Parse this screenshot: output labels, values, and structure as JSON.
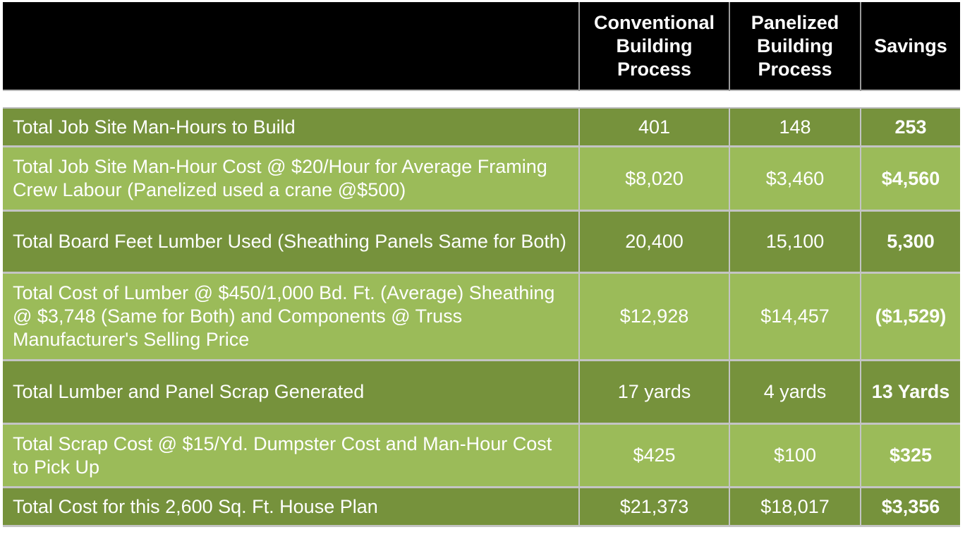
{
  "colors": {
    "header_bg": "#000000",
    "row_dark": "#76923c",
    "row_light": "#9bbb59",
    "text": "#ffffff",
    "grid": "#c4c4c4"
  },
  "header": {
    "conventional": "Conventional Building Process",
    "panelized": "Panelized Building Process",
    "savings": "Savings"
  },
  "rows": [
    {
      "label": "Total Job Site Man-Hours to Build",
      "conventional": "401",
      "panelized": "148",
      "savings": "253"
    },
    {
      "label": "Total Job Site Man-Hour Cost @ $20/Hour for Average Framing Crew Labour (Panelized used a crane @$500)",
      "conventional": "$8,020",
      "panelized": "$3,460",
      "savings": "$4,560"
    },
    {
      "label": "Total Board Feet Lumber Used (Sheathing Panels Same for Both)",
      "conventional": "20,400",
      "panelized": "15,100",
      "savings": "5,300"
    },
    {
      "label": "Total Cost of Lumber @ $450/1,000 Bd. Ft. (Average) Sheathing @ $3,748 (Same for Both) and Components @ Truss Manufacturer's Selling Price",
      "conventional": "$12,928",
      "panelized": "$14,457",
      "savings": "($1,529)"
    },
    {
      "label": "Total Lumber and Panel Scrap Generated",
      "conventional": "17 yards",
      "panelized": "4 yards",
      "savings": "13 Yards"
    },
    {
      "label": "Total Scrap Cost @ $15/Yd. Dumpster Cost and Man-Hour Cost to Pick Up",
      "conventional": "$425",
      "panelized": "$100",
      "savings": "$325"
    },
    {
      "label": "Total Cost for this 2,600 Sq. Ft. House Plan",
      "conventional": "$21,373",
      "panelized": "$18,017",
      "savings": "$3,356"
    }
  ]
}
